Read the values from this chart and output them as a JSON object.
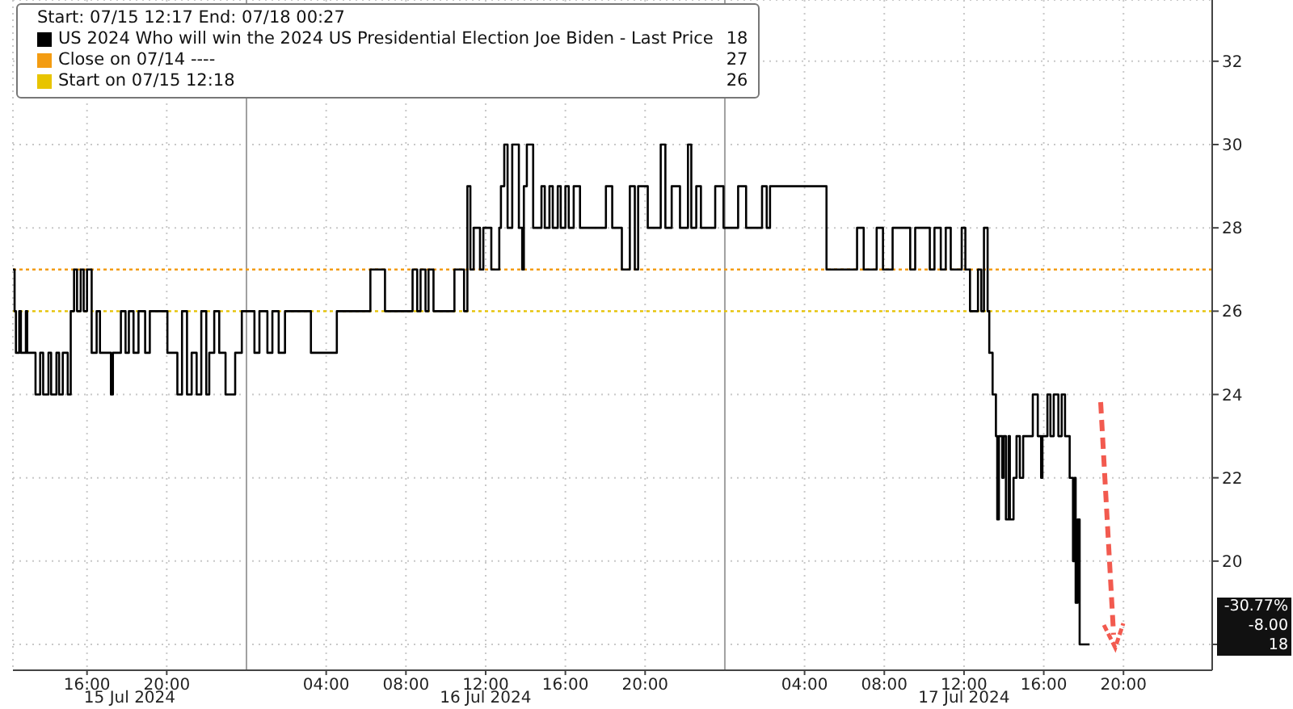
{
  "chart_data": {
    "type": "step",
    "legend_title": "Start: 07/15 12:17 End: 07/18 00:27",
    "x": [
      "2024-07-15T12:17",
      "2024-07-15T12:22",
      "2024-07-15T12:26",
      "2024-07-15T12:36",
      "2024-07-15T12:41",
      "2024-07-15T12:56",
      "2024-07-15T13:00",
      "2024-07-15T13:25",
      "2024-07-15T13:39",
      "2024-07-15T13:48",
      "2024-07-15T14:04",
      "2024-07-15T14:12",
      "2024-07-15T14:28",
      "2024-07-15T14:36",
      "2024-07-15T14:47",
      "2024-07-15T15:02",
      "2024-07-15T15:11",
      "2024-07-15T15:21",
      "2024-07-15T15:30",
      "2024-07-15T15:41",
      "2024-07-15T15:50",
      "2024-07-15T16:00",
      "2024-07-15T16:14",
      "2024-07-15T16:29",
      "2024-07-15T16:39",
      "2024-07-15T17:12",
      "2024-07-15T17:18",
      "2024-07-15T17:42",
      "2024-07-15T17:56",
      "2024-07-15T18:06",
      "2024-07-15T18:20",
      "2024-07-15T18:35",
      "2024-07-15T18:55",
      "2024-07-15T19:09",
      "2024-07-15T20:02",
      "2024-07-15T20:32",
      "2024-07-15T20:46",
      "2024-07-15T21:01",
      "2024-07-15T21:15",
      "2024-07-15T21:30",
      "2024-07-15T21:44",
      "2024-07-15T21:59",
      "2024-07-15T22:08",
      "2024-07-15T22:23",
      "2024-07-15T22:38",
      "2024-07-15T22:57",
      "2024-07-15T23:26",
      "2024-07-15T23:46",
      "2024-07-16T00:24",
      "2024-07-16T00:39",
      "2024-07-16T01:03",
      "2024-07-16T01:18",
      "2024-07-16T01:37",
      "2024-07-16T01:56",
      "2024-07-16T03:14",
      "2024-07-16T04:32",
      "2024-07-16T06:13",
      "2024-07-16T06:57",
      "2024-07-16T08:20",
      "2024-07-16T08:34",
      "2024-07-16T08:44",
      "2024-07-16T08:59",
      "2024-07-16T09:08",
      "2024-07-16T09:23",
      "2024-07-16T10:26",
      "2024-07-16T10:55",
      "2024-07-16T11:05",
      "2024-07-16T11:14",
      "2024-07-16T11:24",
      "2024-07-16T11:43",
      "2024-07-16T11:53",
      "2024-07-16T12:17",
      "2024-07-16T12:41",
      "2024-07-16T12:46",
      "2024-07-16T12:56",
      "2024-07-16T13:06",
      "2024-07-16T13:20",
      "2024-07-16T13:40",
      "2024-07-16T13:50",
      "2024-07-16T13:55",
      "2024-07-16T14:04",
      "2024-07-16T14:23",
      "2024-07-16T14:48",
      "2024-07-16T14:58",
      "2024-07-16T15:12",
      "2024-07-16T15:22",
      "2024-07-16T15:37",
      "2024-07-16T15:46",
      "2024-07-16T16:00",
      "2024-07-16T16:10",
      "2024-07-16T16:25",
      "2024-07-16T16:44",
      "2024-07-16T18:02",
      "2024-07-16T18:21",
      "2024-07-16T18:50",
      "2024-07-16T19:14",
      "2024-07-16T19:29",
      "2024-07-16T19:39",
      "2024-07-16T20:08",
      "2024-07-16T20:47",
      "2024-07-16T21:01",
      "2024-07-16T21:20",
      "2024-07-16T21:45",
      "2024-07-16T22:09",
      "2024-07-16T22:19",
      "2024-07-16T22:34",
      "2024-07-16T22:48",
      "2024-07-16T23:31",
      "2024-07-16T23:56",
      "2024-07-17T00:40",
      "2024-07-17T01:04",
      "2024-07-17T01:52",
      "2024-07-17T02:06",
      "2024-07-17T02:16",
      "2024-07-17T05:06",
      "2024-07-17T06:38",
      "2024-07-17T06:58",
      "2024-07-17T07:37",
      "2024-07-17T07:56",
      "2024-07-17T08:25",
      "2024-07-17T09:18",
      "2024-07-17T09:33",
      "2024-07-17T10:17",
      "2024-07-17T10:31",
      "2024-07-17T10:50",
      "2024-07-17T11:05",
      "2024-07-17T11:20",
      "2024-07-17T11:53",
      "2024-07-17T12:04",
      "2024-07-17T12:18",
      "2024-07-17T12:42",
      "2024-07-17T12:52",
      "2024-07-17T13:00",
      "2024-07-17T13:11",
      "2024-07-17T13:16",
      "2024-07-17T13:26",
      "2024-07-17T13:36",
      "2024-07-17T13:40",
      "2024-07-17T13:45",
      "2024-07-17T13:55",
      "2024-07-17T13:59",
      "2024-07-17T14:06",
      "2024-07-17T14:14",
      "2024-07-17T14:18",
      "2024-07-17T14:29",
      "2024-07-17T14:38",
      "2024-07-17T14:48",
      "2024-07-17T14:58",
      "2024-07-17T15:27",
      "2024-07-17T15:42",
      "2024-07-17T15:52",
      "2024-07-17T15:56",
      "2024-07-17T16:11",
      "2024-07-17T16:20",
      "2024-07-17T16:30",
      "2024-07-17T16:44",
      "2024-07-17T16:54",
      "2024-07-17T17:04",
      "2024-07-17T17:18",
      "2024-07-17T17:28",
      "2024-07-17T17:33",
      "2024-07-17T17:36",
      "2024-07-17T17:42",
      "2024-07-17T17:48",
      "2024-07-17T18:18"
    ],
    "series": [
      {
        "name": "US 2024 Who will win the 2024 US Presidential Election Joe Biden - Last Price",
        "color": "#000000",
        "values": [
          27,
          26,
          25,
          26,
          25,
          26,
          25,
          24,
          25,
          24,
          25,
          24,
          25,
          24,
          25,
          24,
          26,
          27,
          26,
          27,
          26,
          27,
          25,
          26,
          25,
          24,
          25,
          26,
          25,
          26,
          25,
          26,
          25,
          26,
          25,
          24,
          26,
          24,
          25,
          24,
          26,
          24,
          25,
          26,
          25,
          24,
          25,
          26,
          25,
          26,
          25,
          26,
          25,
          26,
          25,
          26,
          27,
          26,
          27,
          26,
          27,
          26,
          27,
          26,
          27,
          26,
          29,
          27,
          28,
          27,
          28,
          27,
          28,
          29,
          30,
          28,
          30,
          28,
          27,
          29,
          30,
          28,
          29,
          28,
          29,
          28,
          29,
          28,
          29,
          28,
          29,
          28,
          29,
          28,
          27,
          29,
          27,
          29,
          28,
          30,
          28,
          29,
          28,
          30,
          28,
          29,
          28,
          29,
          28,
          29,
          28,
          29,
          28,
          29,
          27,
          28,
          27,
          28,
          27,
          28,
          27,
          28,
          27,
          28,
          27,
          28,
          27,
          28,
          27,
          26,
          27,
          26,
          28,
          26,
          25,
          24,
          23,
          21,
          23,
          22,
          23,
          21,
          23,
          21,
          22,
          23,
          22,
          23,
          24,
          23,
          22,
          23,
          24,
          23,
          24,
          23,
          24,
          23,
          22,
          20,
          22,
          19,
          21,
          18,
          18
        ]
      },
      {
        "name": "Close on 07/14 ----",
        "type": "line",
        "line_style": "dotted",
        "color": "#f39c12",
        "x": [
          "2024-07-15T12:17",
          "2024-07-18T00:27"
        ],
        "values": [
          27,
          27
        ]
      },
      {
        "name": "Start on 07/15 12:18",
        "type": "line",
        "line_style": "dotted",
        "color": "#e8c400",
        "x": [
          "2024-07-15T12:17",
          "2024-07-18T00:27"
        ],
        "values": [
          26,
          26
        ]
      }
    ],
    "xlim": [
      "2024-07-15T12:17",
      "2024-07-18T00:27"
    ],
    "xticks": [
      {
        "value": "2024-07-15T16:00",
        "label": "16:00"
      },
      {
        "value": "2024-07-15T20:00",
        "label": "20:00"
      },
      {
        "value": "2024-07-16T04:00",
        "label": "04:00"
      },
      {
        "value": "2024-07-16T08:00",
        "label": "08:00"
      },
      {
        "value": "2024-07-16T12:00",
        "label": "12:00"
      },
      {
        "value": "2024-07-16T16:00",
        "label": "16:00"
      },
      {
        "value": "2024-07-16T20:00",
        "label": "20:00"
      },
      {
        "value": "2024-07-17T04:00",
        "label": "04:00"
      },
      {
        "value": "2024-07-17T08:00",
        "label": "08:00"
      },
      {
        "value": "2024-07-17T12:00",
        "label": "12:00"
      },
      {
        "value": "2024-07-17T16:00",
        "label": "16:00"
      },
      {
        "value": "2024-07-17T20:00",
        "label": "20:00"
      }
    ],
    "ylim": [
      17.38,
      33.47
    ],
    "yticks": [
      {
        "value": 18,
        "label": null
      },
      20,
      22,
      24,
      26,
      28,
      30,
      32
    ],
    "ref_lines": [
      {
        "axis": "x",
        "value": "2024-07-16T00:00",
        "color": "#a0a0a0"
      },
      {
        "axis": "x",
        "value": "2024-07-17T00:00",
        "color": "#a0a0a0"
      }
    ],
    "annotations": [
      "15 Jul 2024",
      "16 Jul 2024",
      "17 Jul 2024",
      "18",
      "27",
      "26",
      "-30.77%",
      "-8.00",
      "18"
    ],
    "grid": true,
    "legend": "top left"
  }
}
